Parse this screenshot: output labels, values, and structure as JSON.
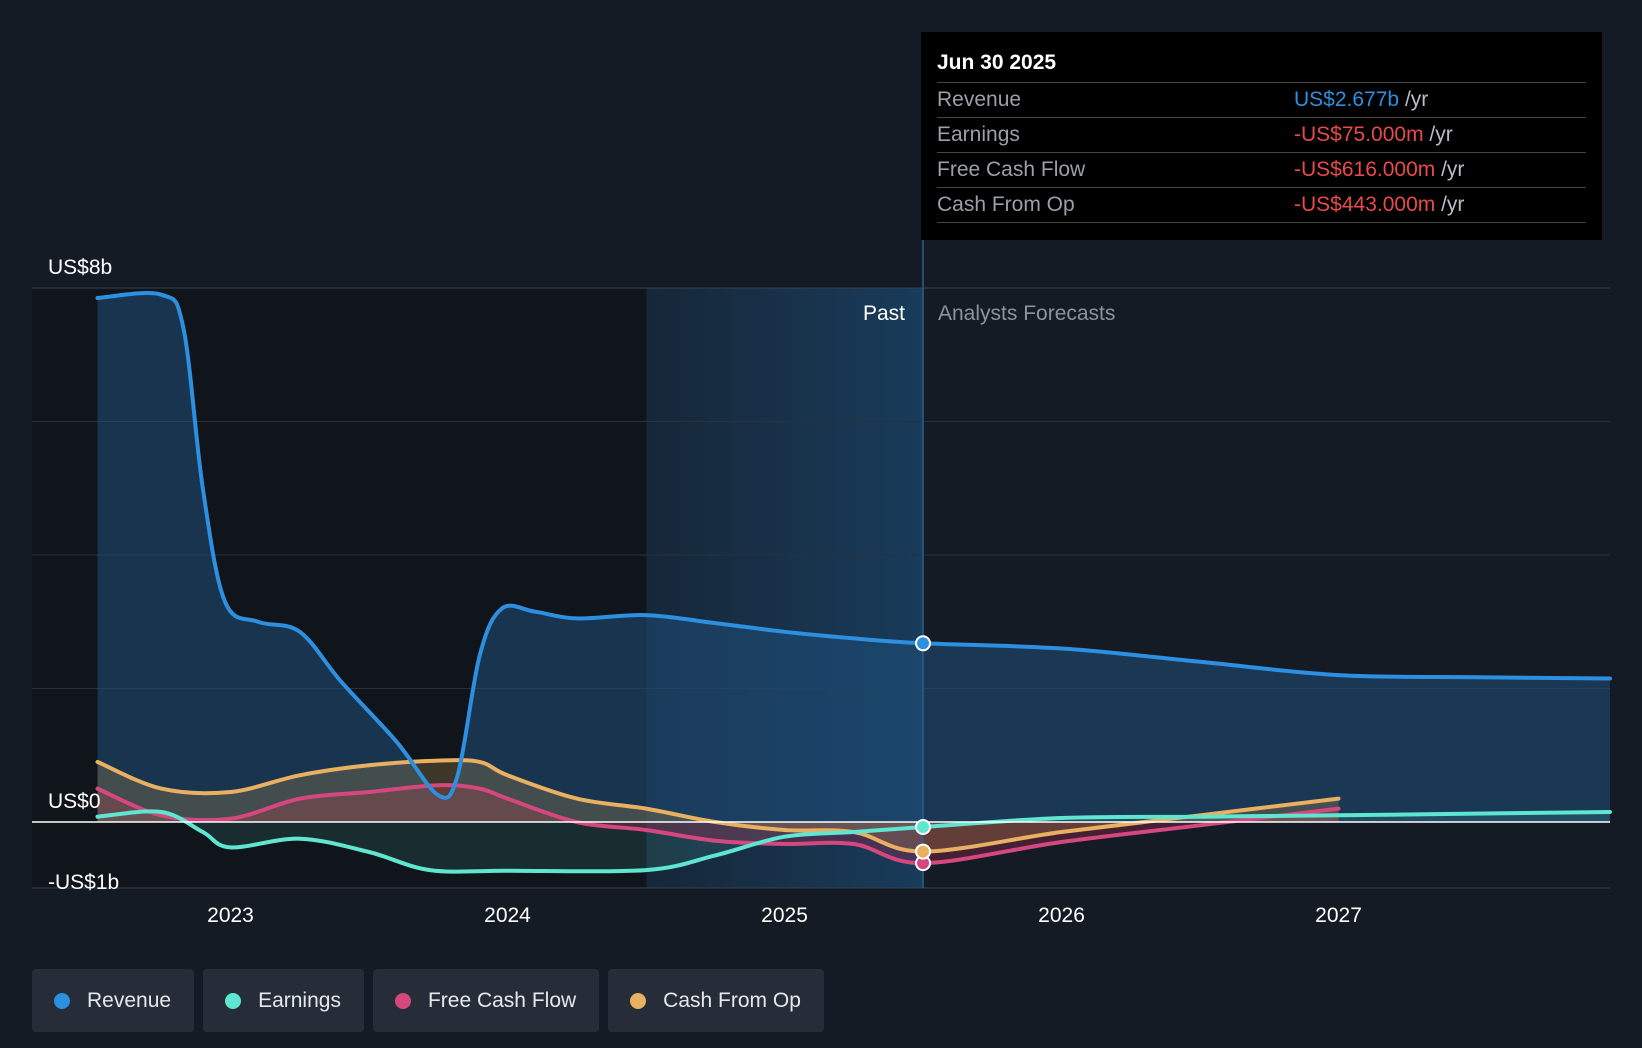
{
  "chart_data": {
    "type": "line",
    "title": "",
    "y_tick_labels": [
      "US$8b",
      "US$0",
      "-US$1b"
    ],
    "ylim": [
      -1,
      8
    ],
    "xlim": [
      2022.5,
      2027.98
    ],
    "x_ticks": [
      2023,
      2024,
      2025,
      2026,
      2027
    ],
    "x_tick_labels": [
      "2023",
      "2024",
      "2025",
      "2026",
      "2027"
    ],
    "past_label": "Past",
    "forecast_label": "Analysts Forecasts",
    "divider_x": 2025.5,
    "shaded_start_x": 2024.5,
    "series": [
      {
        "name": "Revenue",
        "color": "#2d8fe0",
        "points": [
          [
            2022.52,
            7.85
          ],
          [
            2022.75,
            7.9
          ],
          [
            2022.83,
            7.4
          ],
          [
            2022.9,
            5.0
          ],
          [
            2022.98,
            3.3
          ],
          [
            2023.1,
            3.0
          ],
          [
            2023.25,
            2.85
          ],
          [
            2023.4,
            2.1
          ],
          [
            2023.6,
            1.2
          ],
          [
            2023.75,
            0.4
          ],
          [
            2023.82,
            0.7
          ],
          [
            2023.9,
            2.5
          ],
          [
            2023.98,
            3.2
          ],
          [
            2024.1,
            3.15
          ],
          [
            2024.25,
            3.05
          ],
          [
            2024.5,
            3.1
          ],
          [
            2024.75,
            2.98
          ],
          [
            2025.0,
            2.85
          ],
          [
            2025.25,
            2.75
          ],
          [
            2025.5,
            2.677
          ],
          [
            2026.0,
            2.6
          ],
          [
            2026.5,
            2.4
          ],
          [
            2027.0,
            2.2
          ],
          [
            2027.5,
            2.17
          ],
          [
            2027.98,
            2.15
          ]
        ]
      },
      {
        "name": "Earnings",
        "color": "#5ee6d0",
        "points": [
          [
            2022.52,
            0.08
          ],
          [
            2022.75,
            0.15
          ],
          [
            2022.9,
            -0.15
          ],
          [
            2023.0,
            -0.38
          ],
          [
            2023.25,
            -0.25
          ],
          [
            2023.5,
            -0.45
          ],
          [
            2023.72,
            -0.72
          ],
          [
            2024.0,
            -0.73
          ],
          [
            2024.5,
            -0.72
          ],
          [
            2024.75,
            -0.5
          ],
          [
            2025.0,
            -0.22
          ],
          [
            2025.25,
            -0.15
          ],
          [
            2025.5,
            -0.075
          ],
          [
            2026.0,
            0.06
          ],
          [
            2026.5,
            0.08
          ],
          [
            2027.0,
            0.1
          ],
          [
            2027.98,
            0.15
          ]
        ]
      },
      {
        "name": "Free Cash Flow",
        "color": "#d4477f",
        "points": [
          [
            2022.52,
            0.5
          ],
          [
            2022.75,
            0.1
          ],
          [
            2023.0,
            0.05
          ],
          [
            2023.25,
            0.35
          ],
          [
            2023.5,
            0.45
          ],
          [
            2023.75,
            0.55
          ],
          [
            2023.9,
            0.5
          ],
          [
            2024.0,
            0.35
          ],
          [
            2024.25,
            0.0
          ],
          [
            2024.5,
            -0.12
          ],
          [
            2024.75,
            -0.28
          ],
          [
            2025.0,
            -0.33
          ],
          [
            2025.25,
            -0.33
          ],
          [
            2025.5,
            -0.616
          ],
          [
            2026.0,
            -0.3
          ],
          [
            2026.5,
            -0.05
          ],
          [
            2027.0,
            0.2
          ]
        ]
      },
      {
        "name": "Cash From Op",
        "color": "#e8b060",
        "points": [
          [
            2022.52,
            0.9
          ],
          [
            2022.75,
            0.5
          ],
          [
            2023.0,
            0.45
          ],
          [
            2023.25,
            0.7
          ],
          [
            2023.5,
            0.85
          ],
          [
            2023.75,
            0.92
          ],
          [
            2023.9,
            0.9
          ],
          [
            2024.0,
            0.7
          ],
          [
            2024.25,
            0.35
          ],
          [
            2024.5,
            0.2
          ],
          [
            2024.75,
            0.0
          ],
          [
            2025.0,
            -0.12
          ],
          [
            2025.25,
            -0.15
          ],
          [
            2025.5,
            -0.443
          ],
          [
            2026.0,
            -0.15
          ],
          [
            2026.5,
            0.1
          ],
          [
            2027.0,
            0.35
          ]
        ]
      }
    ]
  },
  "tooltip": {
    "date": "Jun 30 2025",
    "rows": [
      {
        "label": "Revenue",
        "value": "US$2.677b",
        "unit": "/yr",
        "color": "#2d8fe0"
      },
      {
        "label": "Earnings",
        "value": "-US$75.000m",
        "unit": "/yr",
        "color": "#e84a4a"
      },
      {
        "label": "Free Cash Flow",
        "value": "-US$616.000m",
        "unit": "/yr",
        "color": "#e84a4a"
      },
      {
        "label": "Cash From Op",
        "value": "-US$443.000m",
        "unit": "/yr",
        "color": "#e84a4a"
      }
    ]
  },
  "legend": [
    {
      "label": "Revenue",
      "color": "#2d8fe0"
    },
    {
      "label": "Earnings",
      "color": "#5ee6d0"
    },
    {
      "label": "Free Cash Flow",
      "color": "#d4477f"
    },
    {
      "label": "Cash From Op",
      "color": "#e8b060"
    }
  ]
}
